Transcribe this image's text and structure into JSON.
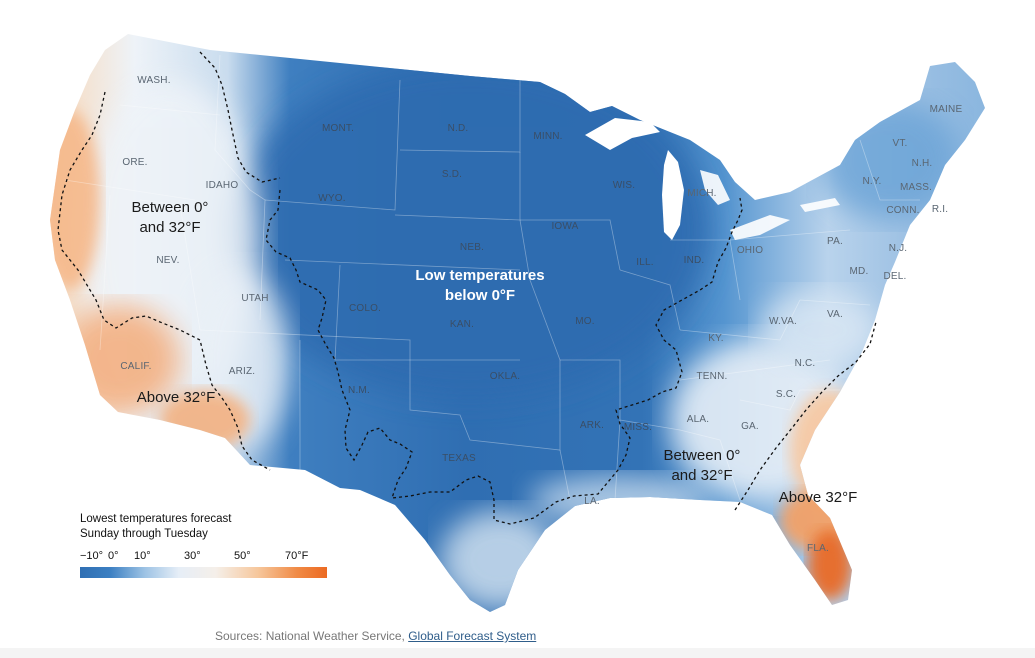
{
  "map": {
    "states": [
      {
        "name": "WASH.",
        "dark": false
      },
      {
        "name": "ORE.",
        "dark": false
      },
      {
        "name": "IDAHO",
        "dark": false
      },
      {
        "name": "MONT.",
        "dark": true
      },
      {
        "name": "N.D.",
        "dark": true
      },
      {
        "name": "MINN.",
        "dark": true
      },
      {
        "name": "WIS.",
        "dark": true
      },
      {
        "name": "MICH.",
        "dark": false
      },
      {
        "name": "S.D.",
        "dark": true
      },
      {
        "name": "WYO.",
        "dark": true
      },
      {
        "name": "NEB.",
        "dark": true
      },
      {
        "name": "IOWA",
        "dark": true
      },
      {
        "name": "NEV.",
        "dark": false
      },
      {
        "name": "UTAH",
        "dark": false
      },
      {
        "name": "COLO.",
        "dark": true
      },
      {
        "name": "KAN.",
        "dark": true
      },
      {
        "name": "MO.",
        "dark": true
      },
      {
        "name": "ILL.",
        "dark": true
      },
      {
        "name": "IND.",
        "dark": true
      },
      {
        "name": "OHIO",
        "dark": false
      },
      {
        "name": "CALIF.",
        "dark": false
      },
      {
        "name": "ARIZ.",
        "dark": false
      },
      {
        "name": "N.M.",
        "dark": true
      },
      {
        "name": "OKLA.",
        "dark": true
      },
      {
        "name": "TEXAS",
        "dark": true
      },
      {
        "name": "ARK.",
        "dark": true
      },
      {
        "name": "MISS.",
        "dark": true
      },
      {
        "name": "ALA.",
        "dark": false
      },
      {
        "name": "GA.",
        "dark": false
      },
      {
        "name": "LA.",
        "dark": false
      },
      {
        "name": "TENN.",
        "dark": false
      },
      {
        "name": "KY.",
        "dark": false
      },
      {
        "name": "W.VA.",
        "dark": false
      },
      {
        "name": "VA.",
        "dark": false
      },
      {
        "name": "N.C.",
        "dark": false
      },
      {
        "name": "S.C.",
        "dark": false
      },
      {
        "name": "FLA.",
        "dark": false
      },
      {
        "name": "PA.",
        "dark": false
      },
      {
        "name": "N.Y.",
        "dark": false
      },
      {
        "name": "MAINE",
        "dark": false
      },
      {
        "name": "VT.",
        "dark": false
      },
      {
        "name": "N.H.",
        "dark": false
      },
      {
        "name": "MASS.",
        "dark": false
      },
      {
        "name": "CONN.",
        "dark": false
      },
      {
        "name": "R.I.",
        "dark": false
      },
      {
        "name": "N.J.",
        "dark": false
      },
      {
        "name": "MD.",
        "dark": false
      },
      {
        "name": "DEL.",
        "dark": false
      }
    ],
    "annotations": {
      "west_between": [
        "Between 0°",
        "and 32°F"
      ],
      "center_low": [
        "Low temperatures",
        "below 0°F"
      ],
      "west_above": "Above 32°F",
      "south_between": [
        "Between 0°",
        "and 32°F"
      ],
      "southeast_above": "Above 32°F"
    },
    "colors": {
      "deep_cold": "#2f6fb3",
      "cold": "#4a8fcf",
      "cool": "#a9cbe8",
      "near_freezing": "#eef3f8",
      "mild": "#f6d3b3",
      "warm": "#ef8a48",
      "hot": "#e85d1e"
    }
  },
  "legend": {
    "title_line1": "Lowest temperatures forecast",
    "title_line2": "Sunday through Tuesday",
    "ticks": [
      "−10°",
      "0°",
      "10°",
      "30°",
      "50°",
      "70°F"
    ]
  },
  "sources": {
    "prefix": "Sources: National Weather Service, ",
    "link": "Global Forecast System"
  }
}
